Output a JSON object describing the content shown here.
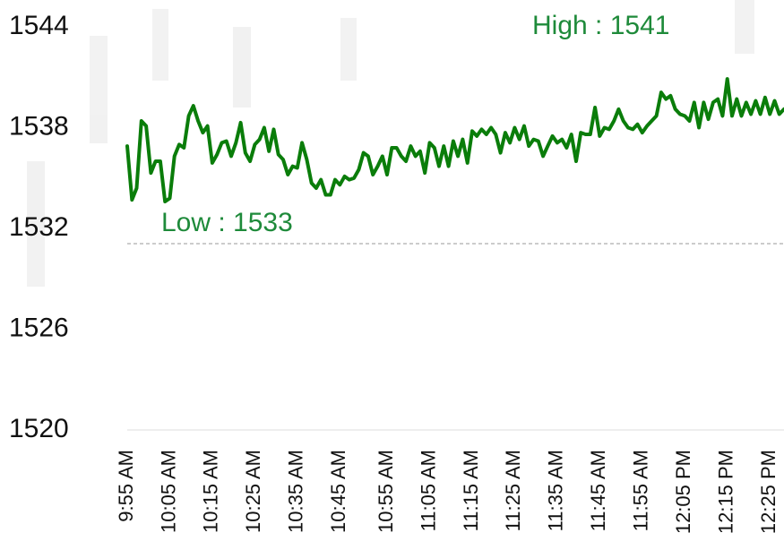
{
  "chart_data": {
    "type": "line",
    "color": "#0a7d0a",
    "annotations": [
      "High : 1541",
      "Low : 1533"
    ],
    "ylim": [
      1520,
      1544
    ],
    "yticks": [
      1520,
      1526,
      1532,
      1538,
      1544
    ],
    "grid": false,
    "categories": [
      "9:55 AM",
      null,
      null,
      null,
      null,
      null,
      null,
      null,
      null,
      "10:05 AM",
      null,
      null,
      null,
      null,
      null,
      null,
      null,
      null,
      "10:15 AM",
      null,
      null,
      null,
      null,
      null,
      null,
      null,
      null,
      "10:25 AM",
      null,
      null,
      null,
      null,
      null,
      null,
      null,
      null,
      "10:35 AM",
      null,
      null,
      null,
      null,
      null,
      null,
      null,
      null,
      "10:45 AM",
      null,
      null,
      null,
      null,
      null,
      null,
      null,
      null,
      null,
      "10:55 AM",
      null,
      null,
      null,
      null,
      null,
      null,
      null,
      null,
      "11:05 AM",
      null,
      null,
      null,
      null,
      null,
      null,
      null,
      null,
      "11:15 AM",
      null,
      null,
      null,
      null,
      null,
      null,
      null,
      null,
      "11:25 AM",
      null,
      null,
      null,
      null,
      null,
      null,
      null,
      null,
      "11:35 AM",
      null,
      null,
      null,
      null,
      null,
      null,
      null,
      null,
      "11:45 AM",
      null,
      null,
      null,
      null,
      null,
      null,
      null,
      null,
      "11:55 AM",
      null,
      null,
      null,
      null,
      null,
      null,
      null,
      null,
      "12:05 PM",
      null,
      null,
      null,
      null,
      null,
      null,
      null,
      null,
      "12:15 PM",
      null,
      null,
      null,
      null,
      null,
      null,
      null,
      null,
      "12:25 PM",
      null,
      null,
      null
    ],
    "values": [
      1536.9,
      1533.7,
      1534.4,
      1538.4,
      1538.1,
      1535.3,
      1536.0,
      1536.0,
      1533.6,
      1533.8,
      1536.3,
      1537.0,
      1536.8,
      1538.7,
      1539.3,
      1538.4,
      1537.7,
      1538.1,
      1535.9,
      1536.4,
      1537.1,
      1537.2,
      1536.3,
      1537.1,
      1538.3,
      1536.5,
      1536.0,
      1537.0,
      1537.3,
      1538.0,
      1536.6,
      1537.9,
      1536.4,
      1536.1,
      1535.2,
      1535.7,
      1535.6,
      1537.1,
      1536.1,
      1534.7,
      1534.4,
      1534.9,
      1534.0,
      1534.0,
      1534.9,
      1534.6,
      1535.1,
      1534.9,
      1535.0,
      1535.5,
      1536.5,
      1536.3,
      1535.2,
      1535.7,
      1536.3,
      1535.2,
      1536.8,
      1536.8,
      1536.3,
      1536.0,
      1536.9,
      1536.3,
      1536.6,
      1535.3,
      1537.1,
      1536.8,
      1535.7,
      1536.9,
      1535.7,
      1537.2,
      1536.3,
      1537.3,
      1535.9,
      1537.8,
      1537.5,
      1537.9,
      1537.6,
      1538.0,
      1537.6,
      1536.5,
      1537.7,
      1537.1,
      1538.0,
      1537.3,
      1538.1,
      1536.9,
      1537.3,
      1537.2,
      1536.3,
      1536.9,
      1537.5,
      1537.1,
      1537.3,
      1536.8,
      1537.6,
      1536.0,
      1537.7,
      1537.6,
      1537.6,
      1539.2,
      1537.5,
      1538.0,
      1537.9,
      1538.4,
      1539.1,
      1538.4,
      1538.0,
      1537.9,
      1538.2,
      1537.7,
      1538.1,
      1538.4,
      1538.7,
      1540.1,
      1539.7,
      1539.9,
      1539.1,
      1538.8,
      1538.7,
      1538.4,
      1539.5,
      1538.0,
      1539.5,
      1538.5,
      1539.5,
      1539.7,
      1538.7,
      1540.9,
      1538.7,
      1539.7,
      1538.7,
      1539.5,
      1538.8,
      1539.6,
      1538.8,
      1539.8,
      1538.8,
      1539.6,
      1538.8,
      1539.1
    ]
  }
}
